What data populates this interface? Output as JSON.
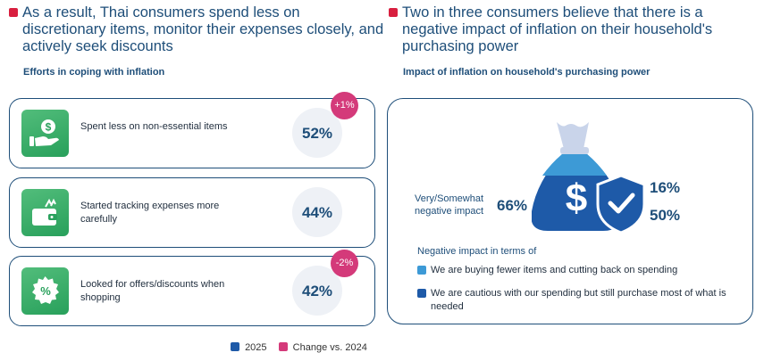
{
  "left": {
    "heading": "As a result, Thai consumers spend less on discretionary items, monitor their expenses closely, and actively seek discounts",
    "subheading": "Efforts in coping with inflation",
    "cards": [
      {
        "icon": "hand-coin-icon",
        "label": "Spent less on non-essential items",
        "value": "52%",
        "change": "+1%"
      },
      {
        "icon": "wallet-icon",
        "label": "Started tracking expenses more carefully",
        "value": "44%",
        "change": ""
      },
      {
        "icon": "discount-badge-icon",
        "label": "Looked for offers/discounts when shopping",
        "value": "42%",
        "change": "-2%"
      }
    ]
  },
  "legend": {
    "items": [
      {
        "label": "2025",
        "color": "#1e5aa8"
      },
      {
        "label": "Change vs. 2024",
        "color": "#d43a7a"
      }
    ]
  },
  "right": {
    "heading": "Two in three consumers believe that there is a negative impact of inflation on their household's purchasing power",
    "subheading": "Impact of inflation on household's purchasing power",
    "total_label": "Very/Somewhat negative impact",
    "total_value": "66%",
    "light_value": "16%",
    "dark_value": "50%",
    "negative_title": "Negative impact in terms of",
    "negative_items": [
      {
        "label": "We are buying fewer items and cutting back on spending",
        "color": "#3d9ad6"
      },
      {
        "label": "We are cautious with our spending but still purchase most of what is needed",
        "color": "#1e5aa8"
      }
    ]
  },
  "chart_data": [
    {
      "type": "bar",
      "title": "Efforts in coping with inflation",
      "categories": [
        "Spent less on non-essential items",
        "Started tracking expenses more carefully",
        "Looked for offers/discounts when shopping"
      ],
      "series": [
        {
          "name": "2025",
          "values": [
            52,
            44,
            42
          ]
        },
        {
          "name": "Change vs. 2024",
          "values": [
            1,
            null,
            -2
          ]
        }
      ]
    },
    {
      "type": "bar",
      "title": "Impact of inflation on household's purchasing power",
      "categories": [
        "Very/Somewhat negative impact"
      ],
      "total": 66,
      "series": [
        {
          "name": "We are buying fewer items and cutting back on spending",
          "values": [
            16
          ]
        },
        {
          "name": "We are cautious with our spending but still purchase most of what is needed",
          "values": [
            50
          ]
        }
      ]
    }
  ]
}
